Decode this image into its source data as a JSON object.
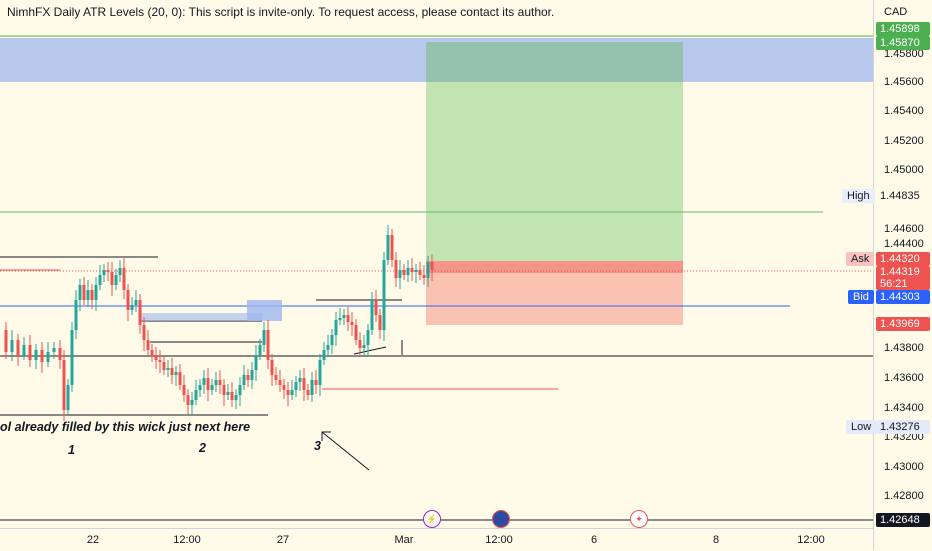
{
  "indicator_text": "NimhFX Daily ATR Levels (20, 0): This script is invite-only. To request access, please contact its author.",
  "annotations": {
    "main": "ol already filled by this wick just next here",
    "n1": "1",
    "n2": "2",
    "n3": "3"
  },
  "axis": {
    "currency": "CAD",
    "ticks": [
      "1.45800",
      "1.45600",
      "1.45400",
      "1.45200",
      "1.45000",
      "1.44600",
      "1.44400",
      "1.43800",
      "1.43600",
      "1.43400",
      "1.43200",
      "1.43000",
      "1.42800"
    ]
  },
  "price_labels": {
    "top1": "1.45898",
    "top2": "1.45870",
    "high": "1.44835",
    "ask": "1.44320",
    "current": "1.44319",
    "countdown": "56:21",
    "bid": "1.44303",
    "target": "1.43969",
    "low": "1.43276",
    "bottom": "1.42648"
  },
  "tags": {
    "high": "High",
    "ask": "Ask",
    "bid": "Bid",
    "low": "Low"
  },
  "time_labels": [
    "22",
    "12:00",
    "27",
    "Mar",
    "12:00",
    "6",
    "8",
    "12:00"
  ],
  "events": [
    "flash-event-icon",
    "us-flag-icon",
    "canada-flag-icon"
  ],
  "colors": {
    "up": "#26a69a",
    "down": "#ef5350",
    "blue_zone": "#b8c9ee",
    "green_zone": "#bfe3b0",
    "red_zone": "#f9c2b1"
  }
}
